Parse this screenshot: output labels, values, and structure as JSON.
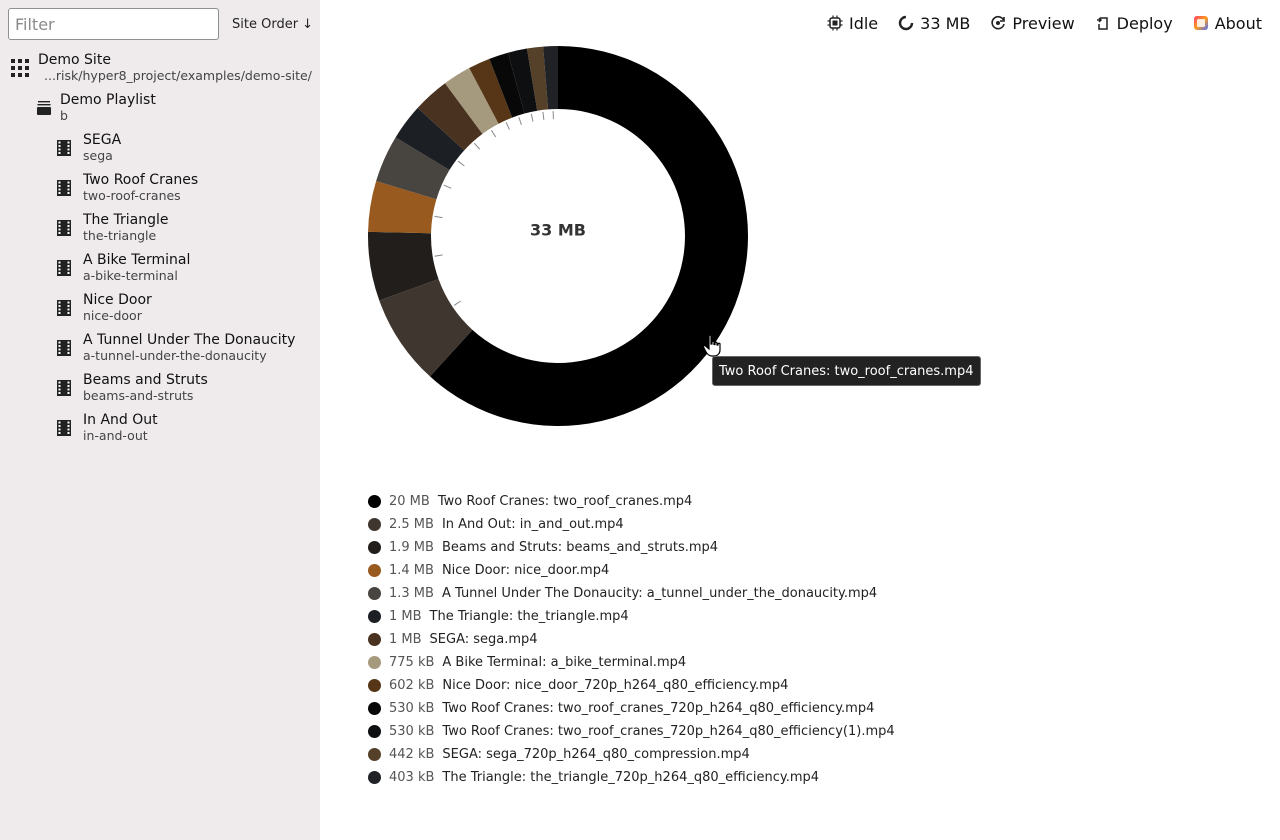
{
  "sidebar": {
    "filter_placeholder": "Filter",
    "sort_label": "Site Order ↓",
    "site": {
      "title": "Demo Site",
      "path": "...risk/hyper8_project/examples/demo-site/"
    },
    "playlist": {
      "title": "Demo Playlist",
      "sub": "b"
    },
    "videos": [
      {
        "title": "SEGA",
        "sub": "sega"
      },
      {
        "title": "Two Roof Cranes",
        "sub": "two-roof-cranes"
      },
      {
        "title": "The Triangle",
        "sub": "the-triangle"
      },
      {
        "title": "A Bike Terminal",
        "sub": "a-bike-terminal"
      },
      {
        "title": "Nice Door",
        "sub": "nice-door"
      },
      {
        "title": "A Tunnel Under The Donaucity",
        "sub": "a-tunnel-under-the-donaucity"
      },
      {
        "title": "Beams and Struts",
        "sub": "beams-and-struts"
      },
      {
        "title": "In And Out",
        "sub": "in-and-out"
      }
    ]
  },
  "toolbar": {
    "status": "Idle",
    "size": "33 MB",
    "preview": "Preview",
    "deploy": "Deploy",
    "about": "About"
  },
  "chart_data": {
    "type": "pie",
    "center_label": "33 MB",
    "slices": [
      {
        "size": "20 MB",
        "value_kb": 20000,
        "label": "Two Roof Cranes: two_roof_cranes.mp4",
        "color": "#000000"
      },
      {
        "size": "2.5 MB",
        "value_kb": 2500,
        "label": "In And Out: in_and_out.mp4",
        "color": "#3f362f"
      },
      {
        "size": "1.9 MB",
        "value_kb": 1900,
        "label": "Beams and Struts: beams_and_struts.mp4",
        "color": "#211e1c"
      },
      {
        "size": "1.4 MB",
        "value_kb": 1400,
        "label": "Nice Door: nice_door.mp4",
        "color": "#985a1f"
      },
      {
        "size": "1.3 MB",
        "value_kb": 1300,
        "label": "A Tunnel Under The Donaucity: a_tunnel_under_the_donaucity.mp4",
        "color": "#48443f"
      },
      {
        "size": "1 MB",
        "value_kb": 1000,
        "label": "The Triangle: the_triangle.mp4",
        "color": "#1c1f23"
      },
      {
        "size": "1 MB",
        "value_kb": 1000,
        "label": "SEGA: sega.mp4",
        "color": "#4a3220"
      },
      {
        "size": "775 kB",
        "value_kb": 775,
        "label": "A Bike Terminal: a_bike_terminal.mp4",
        "color": "#a69a7e"
      },
      {
        "size": "602 kB",
        "value_kb": 602,
        "label": "Nice Door: nice_door_720p_h264_q80_efficiency.mp4",
        "color": "#563616"
      },
      {
        "size": "530 kB",
        "value_kb": 530,
        "label": "Two Roof Cranes: two_roof_cranes_720p_h264_q80_efficiency.mp4",
        "color": "#080808"
      },
      {
        "size": "530 kB",
        "value_kb": 530,
        "label": "Two Roof Cranes: two_roof_cranes_720p_h264_q80_efficiency(1).mp4",
        "color": "#0d0f10"
      },
      {
        "size": "442 kB",
        "value_kb": 442,
        "label": "SEGA: sega_720p_h264_q80_compression.mp4",
        "color": "#55402a"
      },
      {
        "size": "403 kB",
        "value_kb": 403,
        "label": "The Triangle: the_triangle_720p_h264_q80_efficiency.mp4",
        "color": "#202226"
      }
    ]
  },
  "tooltip": {
    "text": "Two Roof Cranes: two_roof_cranes.mp4"
  }
}
